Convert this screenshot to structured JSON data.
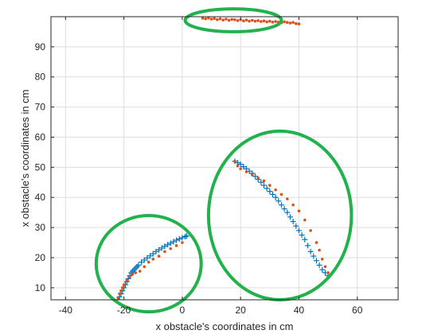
{
  "chart_data": {
    "type": "scatter",
    "title": "",
    "xlabel": "x obstacle's coordinates in cm",
    "ylabel": "x obstacle's coordinates in cm",
    "xlim": [
      -45,
      74
    ],
    "ylim": [
      6,
      100
    ],
    "xticks": [
      -40,
      -20,
      0,
      20,
      40,
      60
    ],
    "yticks": [
      10,
      20,
      30,
      40,
      50,
      60,
      70,
      80,
      90
    ],
    "grid": true,
    "colors": {
      "blue_series": "#0072BD",
      "orange_series": "#D95319",
      "highlight_ellipse": "#22B14C"
    },
    "series": [
      {
        "marker": "plus",
        "x": [
          -21.5,
          -21,
          -20.5,
          -20,
          -19.5,
          -19,
          -18.5,
          -18,
          -17.5,
          -17,
          -16.5,
          -16,
          -15.5,
          -15,
          -14,
          -13,
          -12,
          -11,
          -10,
          -9,
          -8,
          -7,
          -6,
          -5,
          -4,
          -3,
          -2,
          -1,
          0,
          1,
          1.5,
          18,
          19,
          20,
          21,
          22,
          23,
          24,
          25,
          26,
          27,
          28,
          29,
          30,
          31,
          32,
          33,
          34,
          35,
          36,
          37,
          38,
          39,
          40,
          41,
          42,
          43,
          44,
          45,
          46,
          47,
          48,
          49,
          50
        ],
        "y": [
          7,
          8,
          9,
          10,
          11,
          12,
          13,
          14,
          15,
          15.5,
          16,
          16.5,
          17,
          17.5,
          18.5,
          19.2,
          19.9,
          20.6,
          21.3,
          22,
          22.6,
          23.2,
          23.8,
          24.3,
          24.8,
          25.3,
          25.8,
          26.2,
          26.6,
          27,
          27.2,
          52,
          51.5,
          51,
          50.2,
          49.5,
          48.7,
          48,
          47,
          46,
          45,
          44,
          43,
          42,
          41,
          40,
          38.8,
          37.5,
          36.2,
          35,
          33.5,
          32,
          30.5,
          29,
          27.5,
          26,
          24,
          22,
          20.5,
          19,
          17.5,
          16,
          15,
          14
        ]
      },
      {
        "marker": "dot",
        "x": [
          -22,
          -21.5,
          -21,
          -20.5,
          -20,
          -19,
          -18,
          -17,
          -16,
          -14.5,
          -13,
          -11.5,
          -10,
          -8,
          -6,
          -4,
          -2,
          0,
          18,
          19,
          20,
          22,
          24,
          26,
          28,
          30,
          32,
          34,
          36,
          38,
          40,
          42,
          44,
          46,
          47,
          48,
          49,
          50,
          7,
          8,
          9,
          10,
          11,
          12,
          13,
          14,
          15,
          16,
          17,
          18,
          19,
          20,
          21,
          22,
          23,
          24,
          25,
          26,
          27,
          28,
          29,
          30,
          31,
          32,
          33,
          34,
          35,
          36,
          37,
          38,
          39,
          40
        ],
        "y": [
          6.5,
          8,
          9,
          10,
          11,
          12.5,
          13.5,
          14.5,
          15,
          15.5,
          17,
          18.5,
          19.5,
          20.5,
          22,
          23,
          24,
          25,
          52,
          50.5,
          49.5,
          48.5,
          47.5,
          46.5,
          45.5,
          44,
          42.5,
          41,
          39.5,
          37.5,
          35.5,
          32.5,
          29,
          25,
          22.5,
          19.5,
          17,
          15,
          99.5,
          99.3,
          99.6,
          99.2,
          99.4,
          99,
          99.3,
          98.9,
          99.2,
          98.8,
          99.1,
          99,
          98.7,
          99,
          98.6,
          98.9,
          98.5,
          98.8,
          98.5,
          98.7,
          98.4,
          98.6,
          98.3,
          98.5,
          98.2,
          98.4,
          98.2,
          98,
          98.3,
          98.1,
          97.9,
          98.1,
          97.7,
          97.6
        ]
      }
    ],
    "annotations": [
      {
        "shape": "ellipse",
        "cx": 17.5,
        "cy": 98.8,
        "rx": 16.5,
        "ry": 3.8
      },
      {
        "shape": "ellipse",
        "cx": -11.5,
        "cy": 18,
        "rx": 18,
        "ry": 16
      },
      {
        "shape": "ellipse",
        "cx": 33.5,
        "cy": 34,
        "rx": 24.5,
        "ry": 28
      }
    ]
  }
}
